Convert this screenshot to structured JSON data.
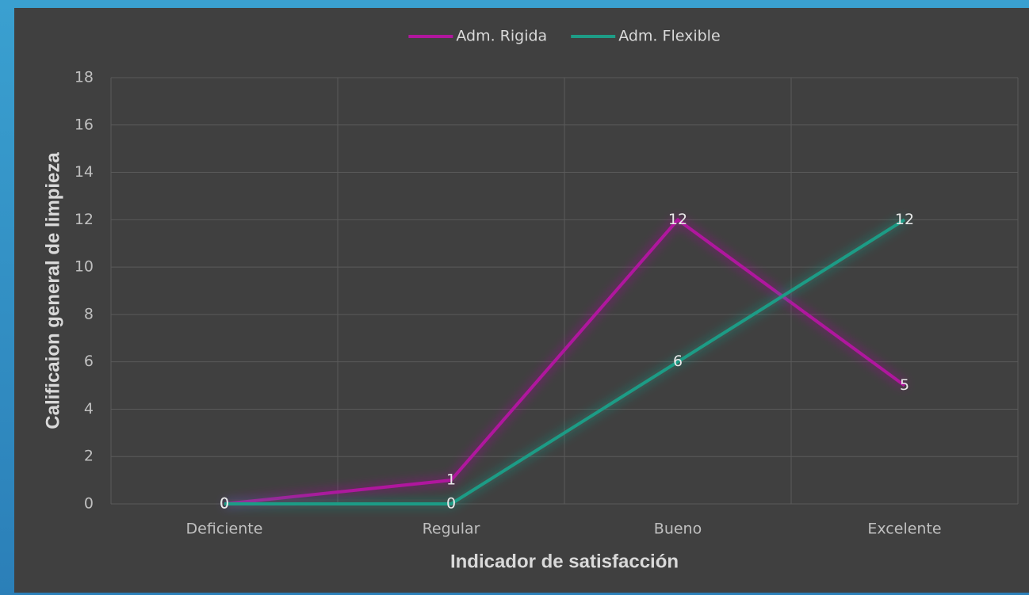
{
  "chart_data": {
    "type": "line",
    "categories": [
      "Deficiente",
      "Regular",
      "Bueno",
      "Excelente"
    ],
    "series": [
      {
        "name": "Adm. Rigida",
        "color": "#b0179e",
        "values": [
          0,
          1,
          12,
          5
        ]
      },
      {
        "name": "Adm. Flexible",
        "color": "#1e9c86",
        "values": [
          0,
          0,
          6,
          12
        ]
      }
    ],
    "x_label": "Indicador de satisfacción",
    "y_label": "Calificaion general de limpieza",
    "ylim": [
      0,
      18
    ],
    "yticks": [
      0,
      2,
      4,
      6,
      8,
      10,
      12,
      14,
      16,
      18
    ],
    "grid": true,
    "legend": "top",
    "data_labels": true
  }
}
